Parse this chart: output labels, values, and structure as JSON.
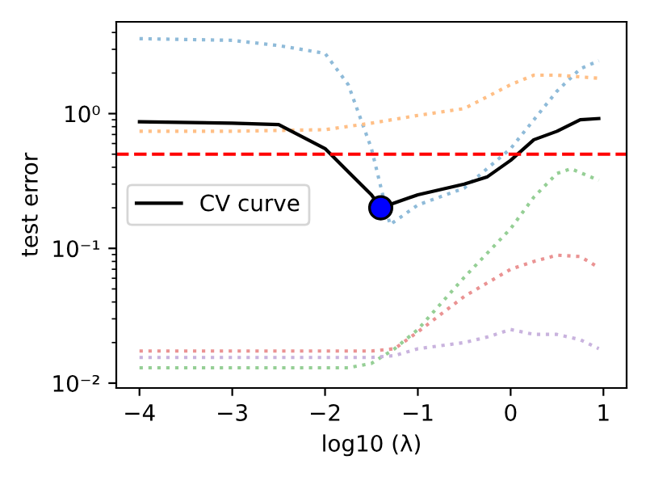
{
  "chart_data": {
    "type": "line",
    "xlabel": "log10 (λ)",
    "ylabel": "test error",
    "log": "y",
    "xlim": [
      -4.25,
      1.25
    ],
    "xticks": [
      {
        "value": -4,
        "label": "−4"
      },
      {
        "value": -3,
        "label": "−3"
      },
      {
        "value": -2,
        "label": "−2"
      },
      {
        "value": -1,
        "label": "−1"
      },
      0,
      1
    ],
    "ylim": [
      0.0092,
      4.8
    ],
    "yticks": [
      {
        "value": 0.01,
        "label": "10⁻²"
      },
      {
        "value": 0.1,
        "label": "10⁻¹"
      },
      {
        "value": 1,
        "label": "10⁰"
      }
    ],
    "legend": "center left",
    "grid": false,
    "series": [
      {
        "color": "#8fbbd9",
        "line_style": "dotted",
        "x": [
          -4,
          -3,
          -2.5,
          -2,
          -1.75,
          -1.5,
          -1.3,
          -1,
          -0.5,
          0,
          0.5,
          0.75,
          0.95
        ],
        "values": [
          3.6,
          3.5,
          3.2,
          2.8,
          1.64,
          0.55,
          0.15,
          0.21,
          0.28,
          0.55,
          1.47,
          2.15,
          2.47
        ]
      },
      {
        "color": "#ffbf86",
        "line_style": "dotted",
        "x": [
          -4,
          -3,
          -2,
          -1.5,
          -1,
          -0.5,
          0,
          0.25,
          0.5,
          0.95
        ],
        "values": [
          0.74,
          0.74,
          0.76,
          0.85,
          0.97,
          1.09,
          1.64,
          1.93,
          1.93,
          1.83
        ]
      },
      {
        "color": "#95cf95",
        "line_style": "dotted",
        "x": [
          -4,
          -1.75,
          -1.5,
          -1.25,
          -1,
          -0.5,
          0,
          0.25,
          0.5,
          0.65,
          0.95
        ],
        "values": [
          0.013,
          0.013,
          0.014,
          0.018,
          0.025,
          0.061,
          0.14,
          0.24,
          0.36,
          0.39,
          0.32
        ]
      },
      {
        "color": "#ea9393",
        "line_style": "dotted",
        "x": [
          -4,
          -1.5,
          -1.25,
          -1,
          -0.5,
          0,
          0.25,
          0.5,
          0.75,
          0.95
        ],
        "values": [
          0.0173,
          0.0173,
          0.018,
          0.024,
          0.044,
          0.07,
          0.08,
          0.089,
          0.087,
          0.072
        ]
      },
      {
        "color": "#c9b3de",
        "line_style": "dotted",
        "x": [
          -4,
          -1.5,
          -1.25,
          -1,
          -0.5,
          -0.25,
          0,
          0.25,
          0.5,
          0.75,
          0.95
        ],
        "values": [
          0.0155,
          0.0155,
          0.016,
          0.018,
          0.02,
          0.022,
          0.025,
          0.023,
          0.023,
          0.021,
          0.018
        ]
      },
      {
        "name": "CV curve",
        "color": "#000000",
        "line_style": "solid",
        "x": [
          -4,
          -3,
          -2.5,
          -2,
          -1.75,
          -1.5,
          -1.4,
          -1,
          -0.5,
          -0.25,
          0,
          0.25,
          0.5,
          0.75,
          0.95
        ],
        "values": [
          0.87,
          0.85,
          0.83,
          0.55,
          0.37,
          0.25,
          0.2,
          0.25,
          0.3,
          0.34,
          0.45,
          0.64,
          0.74,
          0.9,
          0.92
        ]
      },
      {
        "type": "scatter",
        "color": "#0000ff",
        "marker": "circle",
        "x": [
          -1.4
        ],
        "values": [
          0.2
        ]
      }
    ],
    "ref_lines": [
      {
        "axis": "y",
        "value": 0.5,
        "color": "#ff0000",
        "line_style": "dashed"
      }
    ]
  }
}
